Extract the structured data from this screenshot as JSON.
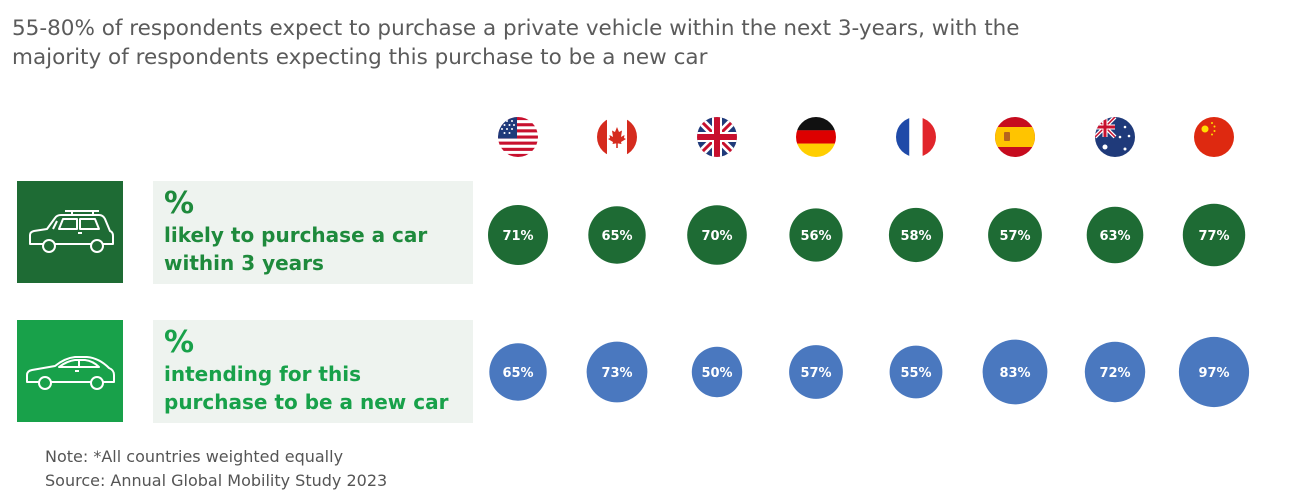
{
  "title": {
    "line1": "55-80% of respondents expect to purchase a private vehicle within the next 3-years, with the",
    "line2": "majority of respondents expecting this purchase to be a new car"
  },
  "colors": {
    "dark_green": "#1e6b34",
    "bright_green": "#18a14a",
    "blue": "#4a78bf",
    "label_bg": "#eef3ef"
  },
  "countries": [
    {
      "name": "United States",
      "icon": "us-flag-icon"
    },
    {
      "name": "Canada",
      "icon": "canada-flag-icon"
    },
    {
      "name": "United Kingdom",
      "icon": "uk-flag-icon"
    },
    {
      "name": "Germany",
      "icon": "germany-flag-icon"
    },
    {
      "name": "France",
      "icon": "france-flag-icon"
    },
    {
      "name": "Spain",
      "icon": "spain-flag-icon"
    },
    {
      "name": "Australia",
      "icon": "australia-flag-icon"
    },
    {
      "name": "China",
      "icon": "china-flag-icon"
    }
  ],
  "rows": [
    {
      "pct_symbol": "%",
      "label": "likely to purchase a car within 3 years",
      "icon": "suv-car-icon"
    },
    {
      "pct_symbol": "%",
      "label": "intending for this purchase to be a new car",
      "icon": "sedan-car-icon"
    }
  ],
  "chart_data": {
    "type": "bubble",
    "categories": [
      "United States",
      "Canada",
      "United Kingdom",
      "Germany",
      "France",
      "Spain",
      "Australia",
      "China"
    ],
    "series": [
      {
        "name": "% likely to purchase a car within 3 years",
        "values": [
          71,
          65,
          70,
          56,
          58,
          57,
          63,
          77
        ],
        "labels": [
          "71%",
          "65%",
          "70%",
          "56%",
          "58%",
          "57%",
          "63%",
          "77%"
        ],
        "color": "#1e6b34"
      },
      {
        "name": "% intending for this purchase to be a new car",
        "values": [
          65,
          73,
          50,
          57,
          55,
          83,
          72,
          97
        ],
        "labels": [
          "65%",
          "73%",
          "50%",
          "57%",
          "55%",
          "83%",
          "72%",
          "97%"
        ],
        "color": "#4a78bf"
      }
    ]
  },
  "notes": {
    "note": "Note: *All countries weighted equally",
    "source": "Source: Annual Global Mobility Study 2023"
  }
}
